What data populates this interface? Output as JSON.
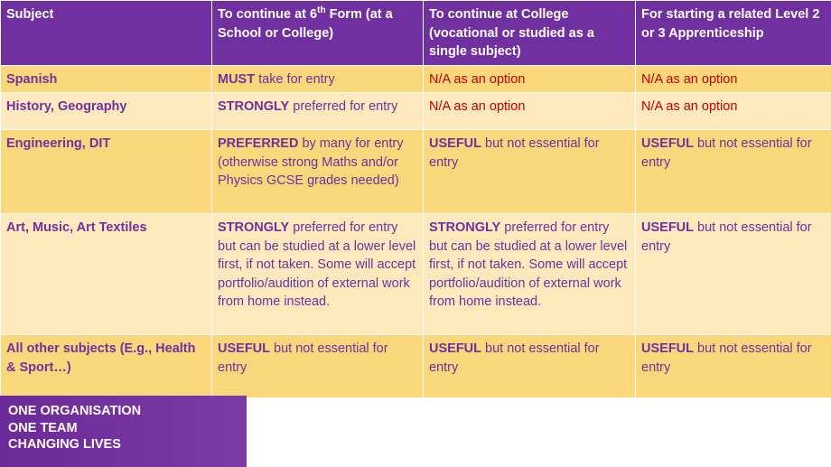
{
  "headers": {
    "subject": "Subject",
    "sixth_form_prefix": "To continue at 6",
    "sixth_form_sup": "th",
    "sixth_form_suffix": " Form (at a School or College)",
    "college": "To continue at College (vocational or studied as a single subject)",
    "apprenticeship": "For starting a related Level 2 or 3 Apprenticeship"
  },
  "rows": [
    {
      "subject": "Spanish",
      "sixth_form": {
        "bold": "MUST",
        "text": " take for entry"
      },
      "college": {
        "na": "N/A as an option"
      },
      "apprenticeship": {
        "na": "N/A as an option"
      }
    },
    {
      "subject": "History, Geography",
      "sixth_form": {
        "bold": "STRONGLY",
        "text": " preferred for entry"
      },
      "college": {
        "na": "N/A as an option"
      },
      "apprenticeship": {
        "na": "N/A as an option"
      }
    },
    {
      "subject": "Engineering, DIT",
      "sixth_form": {
        "bold": "PREFERRED",
        "text": " by many for entry (otherwise strong Maths and/or Physics GCSE grades needed)"
      },
      "college": {
        "bold": "USEFUL",
        "text": " but not essential for entry"
      },
      "apprenticeship": {
        "bold": "USEFUL",
        "text": " but not essential for entry"
      }
    },
    {
      "subject": "Art, Music, Art Textiles",
      "sixth_form": {
        "bold": "STRONGLY",
        "text": " preferred for entry but can be studied at a lower level first, if not taken. Some will accept portfolio/audition of external work from home instead."
      },
      "college": {
        "bold": "STRONGLY",
        "text": " preferred for entry but can be studied at a lower level first, if not taken. Some will accept portfolio/audition of external work from home instead."
      },
      "apprenticeship": {
        "bold": "USEFUL",
        "text": " but not essential for entry"
      }
    },
    {
      "subject": "All other subjects (E.g., Health & Sport…)",
      "sixth_form": {
        "bold": "USEFUL",
        "text": " but not essential for entry"
      },
      "college": {
        "bold": "USEFUL",
        "text": " but not essential for entry"
      },
      "apprenticeship": {
        "bold": "USEFUL",
        "text": " but not essential for entry"
      }
    }
  ],
  "footer": {
    "line1": "ONE ORGANISATION",
    "line2": "ONE TEAM",
    "line3": "CHANGING LIVES"
  },
  "colors": {
    "header_bg": "#7030a0",
    "row_dark": "#fbd77b",
    "row_light": "#fde9bb",
    "text_purple": "#7030a0",
    "text_red": "#c00000"
  }
}
